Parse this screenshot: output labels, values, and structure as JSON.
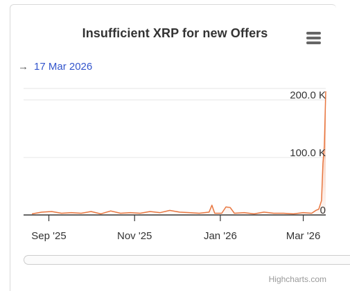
{
  "chart_data": {
    "type": "area",
    "title": "Insufficient XRP for new Offers",
    "range_label": "17 Mar 2026",
    "x_ticks": [
      "Sep '25",
      "Nov '25",
      "Jan '26",
      "Mar '26"
    ],
    "y_ticks": [
      "0",
      "100.0 K",
      "200.0 K"
    ],
    "ylim": [
      0,
      220000
    ],
    "series": [
      {
        "color": "#e8763f",
        "points": [
          [
            "2025-08-20",
            2000
          ],
          [
            "2025-08-27",
            5000
          ],
          [
            "2025-09-03",
            6000
          ],
          [
            "2025-09-10",
            3000
          ],
          [
            "2025-09-17",
            4000
          ],
          [
            "2025-09-24",
            3000
          ],
          [
            "2025-10-01",
            6000
          ],
          [
            "2025-10-08",
            2000
          ],
          [
            "2025-10-15",
            7000
          ],
          [
            "2025-10-22",
            3000
          ],
          [
            "2025-10-29",
            4000
          ],
          [
            "2025-11-05",
            3000
          ],
          [
            "2025-11-12",
            6000
          ],
          [
            "2025-11-19",
            4000
          ],
          [
            "2025-11-26",
            8000
          ],
          [
            "2025-12-03",
            5000
          ],
          [
            "2025-12-10",
            4000
          ],
          [
            "2025-12-17",
            3000
          ],
          [
            "2025-12-24",
            5000
          ],
          [
            "2025-12-26",
            17000
          ],
          [
            "2025-12-28",
            3000
          ],
          [
            "2026-01-02",
            3000
          ],
          [
            "2026-01-05",
            14000
          ],
          [
            "2026-01-08",
            13000
          ],
          [
            "2026-01-11",
            3000
          ],
          [
            "2026-01-18",
            4000
          ],
          [
            "2026-01-25",
            2000
          ],
          [
            "2026-02-01",
            5000
          ],
          [
            "2026-02-08",
            3000
          ],
          [
            "2026-02-15",
            3000
          ],
          [
            "2026-02-22",
            2000
          ],
          [
            "2026-03-01",
            4000
          ],
          [
            "2026-03-07",
            3000
          ],
          [
            "2026-03-10",
            8000
          ],
          [
            "2026-03-12",
            10000
          ],
          [
            "2026-03-14",
            25000
          ],
          [
            "2026-03-15",
            90000
          ],
          [
            "2026-03-16",
            120000
          ],
          [
            "2026-03-17",
            215000
          ]
        ]
      }
    ]
  },
  "credits": "Highcharts.com",
  "colors": {
    "series": "#e8763f",
    "range_text": "#3355cc",
    "grid": "#e6e6e6"
  }
}
